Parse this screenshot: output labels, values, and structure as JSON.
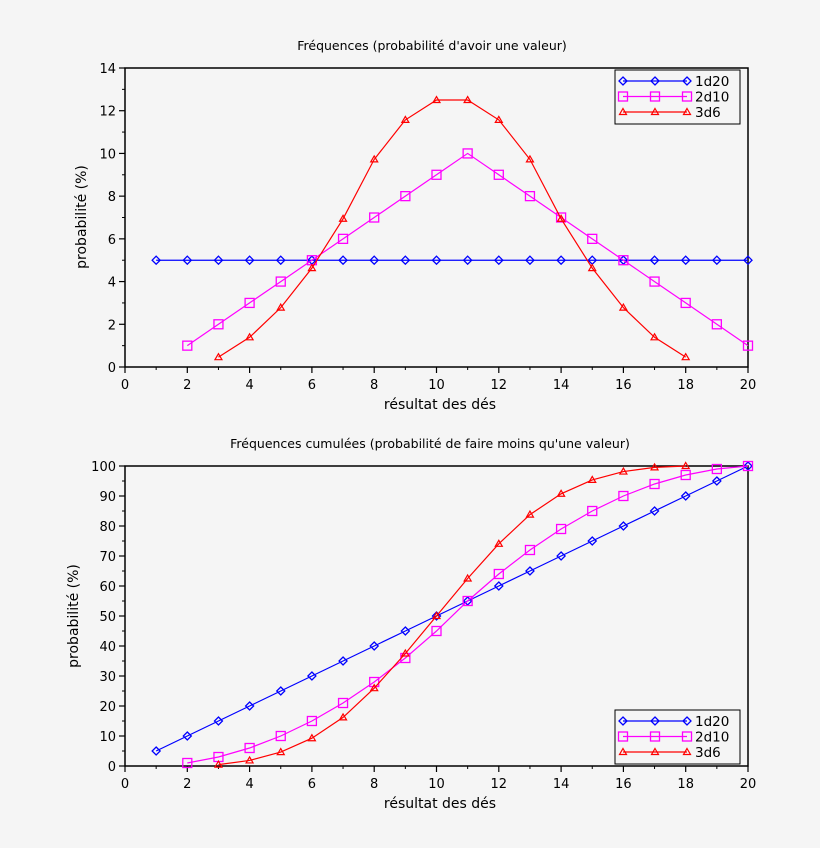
{
  "chart_data": [
    {
      "type": "line",
      "title": "Fréquences (probabilité d'avoir une valeur)",
      "xlabel": "résultat des dés",
      "ylabel": "probabilité (%)",
      "xlim": [
        0,
        20
      ],
      "ylim": [
        0,
        14
      ],
      "xticks": [
        0,
        2,
        4,
        6,
        8,
        10,
        12,
        14,
        16,
        18,
        20
      ],
      "yticks": [
        0,
        2,
        4,
        6,
        8,
        10,
        12,
        14
      ],
      "grid": false,
      "legend": "top-right",
      "series": [
        {
          "name": "1d20",
          "color": "#0000ff",
          "marker": "diamond",
          "x": [
            1,
            2,
            3,
            4,
            5,
            6,
            7,
            8,
            9,
            10,
            11,
            12,
            13,
            14,
            15,
            16,
            17,
            18,
            19,
            20
          ],
          "y": [
            5,
            5,
            5,
            5,
            5,
            5,
            5,
            5,
            5,
            5,
            5,
            5,
            5,
            5,
            5,
            5,
            5,
            5,
            5,
            5
          ]
        },
        {
          "name": "2d10",
          "color": "#ff00ff",
          "marker": "square",
          "x": [
            2,
            3,
            4,
            5,
            6,
            7,
            8,
            9,
            10,
            11,
            12,
            13,
            14,
            15,
            16,
            17,
            18,
            19,
            20
          ],
          "y": [
            1,
            2,
            3,
            4,
            5,
            6,
            7,
            8,
            9,
            10,
            9,
            8,
            7,
            6,
            5,
            4,
            3,
            2,
            1
          ]
        },
        {
          "name": "3d6",
          "color": "#ff0000",
          "marker": "triangle",
          "x": [
            3,
            4,
            5,
            6,
            7,
            8,
            9,
            10,
            11,
            12,
            13,
            14,
            15,
            16,
            17,
            18
          ],
          "y": [
            0.46,
            1.39,
            2.78,
            4.63,
            6.94,
            9.72,
            11.57,
            12.5,
            12.5,
            11.57,
            9.72,
            6.94,
            4.63,
            2.78,
            1.39,
            0.46
          ]
        }
      ]
    },
    {
      "type": "line",
      "title": "Fréquences cumulées (probabilité de faire moins qu'une valeur)",
      "xlabel": "résultat des dés",
      "ylabel": "probabilité (%)",
      "xlim": [
        0,
        20
      ],
      "ylim": [
        0,
        100
      ],
      "xticks": [
        0,
        2,
        4,
        6,
        8,
        10,
        12,
        14,
        16,
        18,
        20
      ],
      "yticks": [
        0,
        10,
        20,
        30,
        40,
        50,
        60,
        70,
        80,
        90,
        100
      ],
      "grid": false,
      "legend": "bottom-right",
      "series": [
        {
          "name": "1d20",
          "color": "#0000ff",
          "marker": "diamond",
          "x": [
            1,
            2,
            3,
            4,
            5,
            6,
            7,
            8,
            9,
            10,
            11,
            12,
            13,
            14,
            15,
            16,
            17,
            18,
            19,
            20
          ],
          "y": [
            5,
            10,
            15,
            20,
            25,
            30,
            35,
            40,
            45,
            50,
            55,
            60,
            65,
            70,
            75,
            80,
            85,
            90,
            95,
            100
          ]
        },
        {
          "name": "2d10",
          "color": "#ff00ff",
          "marker": "square",
          "x": [
            2,
            3,
            4,
            5,
            6,
            7,
            8,
            9,
            10,
            11,
            12,
            13,
            14,
            15,
            16,
            17,
            18,
            19,
            20
          ],
          "y": [
            1,
            3,
            6,
            10,
            15,
            21,
            28,
            36,
            45,
            55,
            64,
            72,
            79,
            85,
            90,
            94,
            97,
            99,
            100
          ]
        },
        {
          "name": "3d6",
          "color": "#ff0000",
          "marker": "triangle",
          "x": [
            3,
            4,
            5,
            6,
            7,
            8,
            9,
            10,
            11,
            12,
            13,
            14,
            15,
            16,
            17,
            18
          ],
          "y": [
            0.46,
            1.85,
            4.63,
            9.26,
            16.2,
            25.93,
            37.5,
            50,
            62.5,
            74.07,
            83.8,
            90.74,
            95.37,
            98.15,
            99.54,
            100
          ]
        }
      ]
    }
  ]
}
